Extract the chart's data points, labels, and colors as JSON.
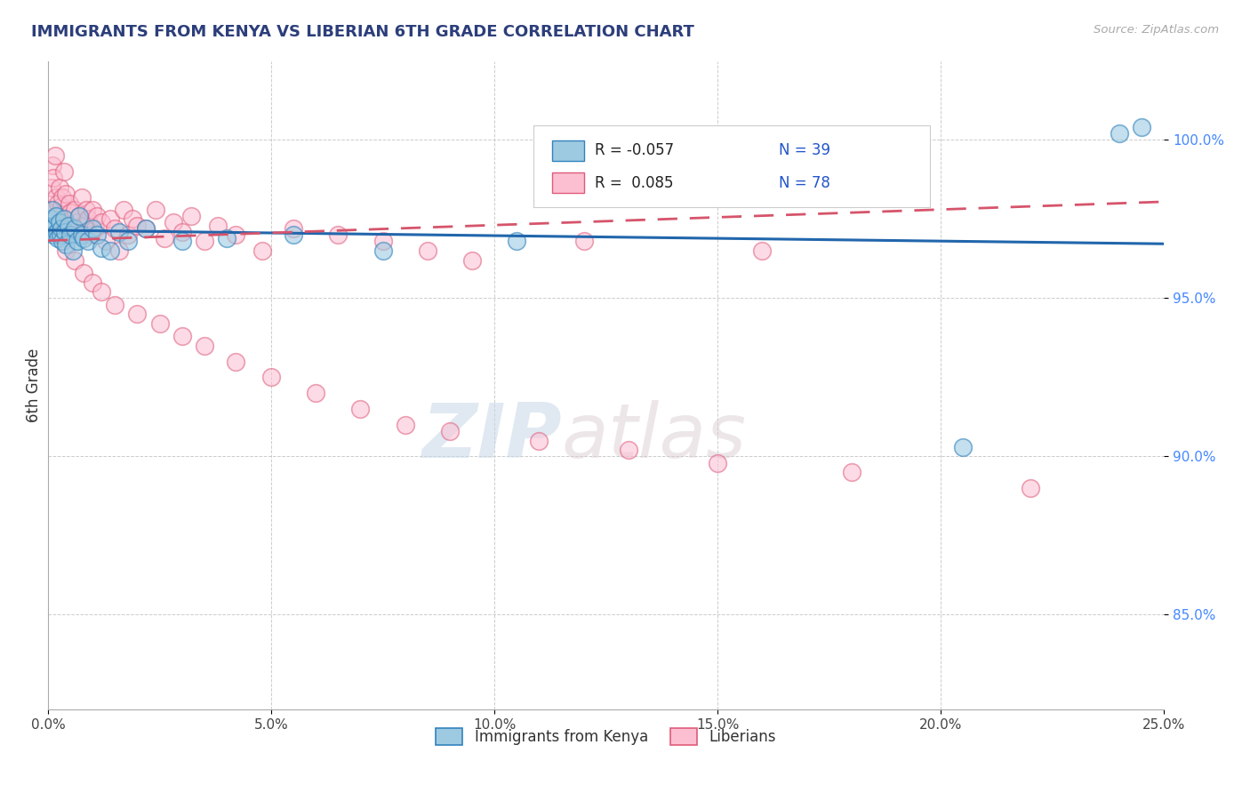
{
  "title": "IMMIGRANTS FROM KENYA VS LIBERIAN 6TH GRADE CORRELATION CHART",
  "source_text": "Source: ZipAtlas.com",
  "ylabel": "6th Grade",
  "xlim": [
    0.0,
    25.0
  ],
  "ylim": [
    82.0,
    102.5
  ],
  "xtick_labels": [
    "0.0%",
    "5.0%",
    "10.0%",
    "15.0%",
    "20.0%",
    "25.0%"
  ],
  "xtick_vals": [
    0.0,
    5.0,
    10.0,
    15.0,
    20.0,
    25.0
  ],
  "ytick_labels": [
    "85.0%",
    "90.0%",
    "95.0%",
    "100.0%"
  ],
  "ytick_vals": [
    85.0,
    90.0,
    95.0,
    100.0
  ],
  "blue_color": "#9ecae1",
  "pink_color": "#fcbfd2",
  "blue_edge_color": "#3182bd",
  "pink_edge_color": "#de5b7a",
  "blue_line_color": "#2166ac",
  "pink_line_color": "#d6546b",
  "title_color": "#2c3e7a",
  "grid_color": "#cccccc",
  "watermark_zip": "ZIP",
  "watermark_atlas": "atlas",
  "kenya_x": [
    0.05,
    0.08,
    0.1,
    0.12,
    0.15,
    0.18,
    0.2,
    0.22,
    0.25,
    0.28,
    0.3,
    0.32,
    0.35,
    0.38,
    0.4,
    0.45,
    0.5,
    0.55,
    0.6,
    0.65,
    0.7,
    0.75,
    0.8,
    0.9,
    1.0,
    1.1,
    1.2,
    1.4,
    1.6,
    1.8,
    2.2,
    3.0,
    4.0,
    5.5,
    7.5,
    10.5,
    20.5,
    24.0,
    24.5
  ],
  "kenya_y": [
    97.5,
    97.2,
    97.8,
    97.0,
    97.3,
    97.6,
    97.1,
    96.9,
    97.4,
    97.0,
    97.2,
    96.8,
    97.5,
    97.1,
    96.7,
    97.3,
    97.0,
    96.5,
    97.2,
    96.8,
    97.6,
    97.0,
    96.9,
    96.8,
    97.2,
    97.0,
    96.6,
    96.5,
    97.1,
    96.8,
    97.2,
    96.8,
    96.9,
    97.0,
    96.5,
    96.8,
    90.3,
    100.2,
    100.4
  ],
  "liberian_x": [
    0.05,
    0.08,
    0.1,
    0.12,
    0.15,
    0.18,
    0.2,
    0.22,
    0.25,
    0.28,
    0.3,
    0.32,
    0.35,
    0.38,
    0.4,
    0.43,
    0.47,
    0.5,
    0.55,
    0.6,
    0.65,
    0.7,
    0.75,
    0.8,
    0.85,
    0.9,
    0.95,
    1.0,
    1.05,
    1.1,
    1.2,
    1.3,
    1.4,
    1.5,
    1.6,
    1.7,
    1.8,
    1.9,
    2.0,
    2.2,
    2.4,
    2.6,
    2.8,
    3.0,
    3.2,
    3.5,
    3.8,
    4.2,
    4.8,
    5.5,
    6.5,
    7.5,
    8.5,
    9.5,
    12.0,
    16.0,
    0.25,
    0.4,
    0.6,
    0.8,
    1.0,
    1.2,
    1.5,
    2.0,
    2.5,
    3.0,
    3.5,
    4.2,
    5.0,
    6.0,
    7.0,
    8.0,
    9.0,
    11.0,
    13.0,
    15.0,
    18.0,
    22.0
  ],
  "liberian_y": [
    97.8,
    98.5,
    99.2,
    98.8,
    99.5,
    98.2,
    97.6,
    98.0,
    98.5,
    97.3,
    97.9,
    98.2,
    99.0,
    97.5,
    98.3,
    97.1,
    98.0,
    97.7,
    97.2,
    97.8,
    97.4,
    97.6,
    98.2,
    97.3,
    97.8,
    97.5,
    97.0,
    97.8,
    97.2,
    97.6,
    97.4,
    96.8,
    97.5,
    97.2,
    96.5,
    97.8,
    97.0,
    97.5,
    97.3,
    97.2,
    97.8,
    96.9,
    97.4,
    97.1,
    97.6,
    96.8,
    97.3,
    97.0,
    96.5,
    97.2,
    97.0,
    96.8,
    96.5,
    96.2,
    96.8,
    96.5,
    97.0,
    96.5,
    96.2,
    95.8,
    95.5,
    95.2,
    94.8,
    94.5,
    94.2,
    93.8,
    93.5,
    93.0,
    92.5,
    92.0,
    91.5,
    91.0,
    90.8,
    90.5,
    90.2,
    89.8,
    89.5,
    89.0
  ]
}
